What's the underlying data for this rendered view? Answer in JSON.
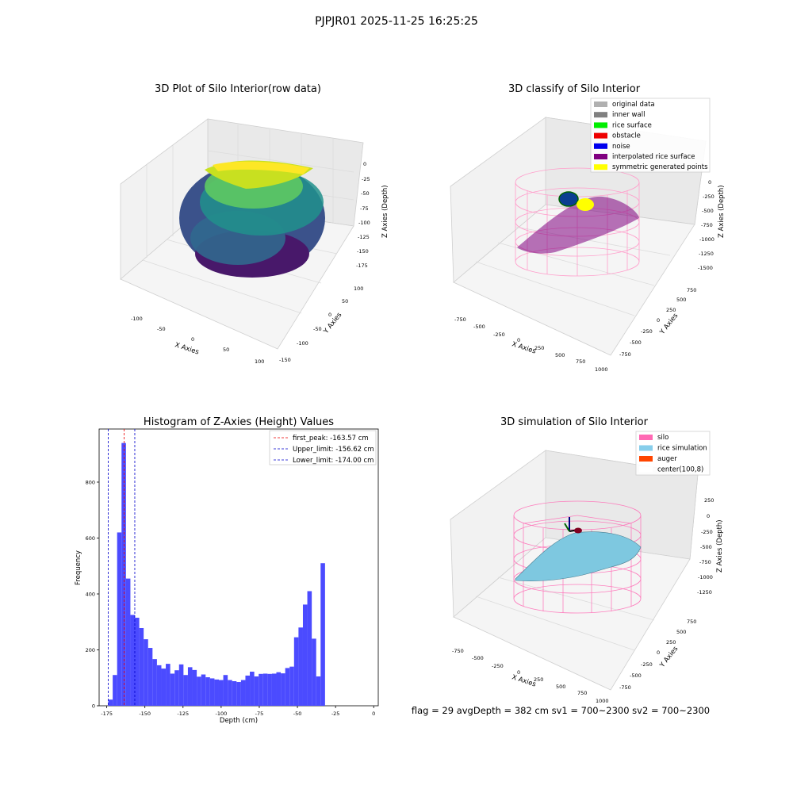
{
  "figure": {
    "suptitle": "PJPJR01 2025-11-25 16:25:25",
    "footer": "flag = 29  avgDepth = 382 cm  sv1 = 700~2300  sv2 = 700~2300"
  },
  "panels": {
    "raw": {
      "title": "3D Plot of Silo Interior(row data)",
      "xlabel": "X Axies",
      "ylabel": "Y Axies",
      "zlabel": "Z Axies (Depth)",
      "xticks": [
        "-100",
        "-50",
        "0",
        "50",
        "100"
      ],
      "yticks": [
        "100",
        "50",
        "0",
        "-50",
        "-100",
        "-150"
      ],
      "zticks": [
        "0",
        "-25",
        "-50",
        "-75",
        "-100",
        "-125",
        "-150",
        "-175"
      ]
    },
    "classify": {
      "title": "3D classify of Silo Interior",
      "xlabel": "X Axies",
      "ylabel": "Y Axies",
      "zlabel": "Z Axies (Depth)",
      "xticks": [
        "-750",
        "-500",
        "-250",
        "0",
        "250",
        "500",
        "750",
        "1000"
      ],
      "yticks": [
        "750",
        "500",
        "250",
        "0",
        "-250",
        "-500",
        "-750"
      ],
      "zticks": [
        "0",
        "-250",
        "-500",
        "-750",
        "-1000",
        "-1250",
        "-1500"
      ],
      "legend": [
        {
          "label": "original data",
          "color": "#b0b0b0"
        },
        {
          "label": "inner wall",
          "color": "#808080"
        },
        {
          "label": "rice surface",
          "color": "#00ee00"
        },
        {
          "label": "obstacle",
          "color": "#ee0000"
        },
        {
          "label": "noise",
          "color": "#0000ee"
        },
        {
          "label": "interpolated rice surface",
          "color": "#800080"
        },
        {
          "label": "symmetric generated points",
          "color": "#ffff00"
        }
      ]
    },
    "simulation": {
      "title": "3D simulation of Silo Interior",
      "xlabel": "X Axies",
      "ylabel": "Y Axies",
      "zlabel": "Z Axies (Depth)",
      "xticks": [
        "-750",
        "-500",
        "-250",
        "0",
        "250",
        "500",
        "750",
        "1000"
      ],
      "yticks": [
        "750",
        "500",
        "250",
        "0",
        "-250",
        "-500",
        "-750"
      ],
      "zticks": [
        "250",
        "0",
        "-250",
        "-500",
        "-750",
        "-1000",
        "-1250"
      ],
      "legend": [
        {
          "label": "silo",
          "color": "#ff69b4"
        },
        {
          "label": "rice simulation",
          "color": "#87ceeb"
        },
        {
          "label": "auger",
          "color": "#ff4500"
        },
        {
          "label": "center(100,8)",
          "color": "#ffffff"
        }
      ]
    }
  },
  "chart_data": {
    "type": "bar",
    "title": "Histogram of Z-Axies (Height) Values",
    "xlabel": "Depth (cm)",
    "ylabel": "Frequency",
    "xlim": [
      -180,
      3
    ],
    "ylim": [
      0,
      990
    ],
    "xticks": [
      -175,
      -150,
      -125,
      -100,
      -75,
      -50,
      -25,
      0
    ],
    "yticks": [
      0,
      200,
      400,
      600,
      800
    ],
    "bar_color": "#4b4bff",
    "bin_width": 2.9,
    "bins": [
      {
        "x": -174.0,
        "value": 22
      },
      {
        "x": -171.1,
        "value": 110
      },
      {
        "x": -168.2,
        "value": 620
      },
      {
        "x": -165.3,
        "value": 940
      },
      {
        "x": -162.4,
        "value": 455
      },
      {
        "x": -159.5,
        "value": 325
      },
      {
        "x": -156.6,
        "value": 315
      },
      {
        "x": -153.7,
        "value": 278
      },
      {
        "x": -150.8,
        "value": 238
      },
      {
        "x": -147.9,
        "value": 207
      },
      {
        "x": -145.0,
        "value": 167
      },
      {
        "x": -142.1,
        "value": 145
      },
      {
        "x": -139.2,
        "value": 133
      },
      {
        "x": -136.3,
        "value": 150
      },
      {
        "x": -133.4,
        "value": 115
      },
      {
        "x": -130.5,
        "value": 127
      },
      {
        "x": -127.6,
        "value": 148
      },
      {
        "x": -124.7,
        "value": 110
      },
      {
        "x": -121.8,
        "value": 138
      },
      {
        "x": -118.9,
        "value": 128
      },
      {
        "x": -116.0,
        "value": 104
      },
      {
        "x": -113.1,
        "value": 112
      },
      {
        "x": -110.2,
        "value": 102
      },
      {
        "x": -107.3,
        "value": 98
      },
      {
        "x": -104.4,
        "value": 94
      },
      {
        "x": -101.5,
        "value": 92
      },
      {
        "x": -98.6,
        "value": 110
      },
      {
        "x": -95.7,
        "value": 92
      },
      {
        "x": -92.8,
        "value": 88
      },
      {
        "x": -89.9,
        "value": 85
      },
      {
        "x": -87.0,
        "value": 92
      },
      {
        "x": -84.1,
        "value": 108
      },
      {
        "x": -81.2,
        "value": 122
      },
      {
        "x": -78.3,
        "value": 105
      },
      {
        "x": -75.4,
        "value": 114
      },
      {
        "x": -72.5,
        "value": 115
      },
      {
        "x": -69.6,
        "value": 114
      },
      {
        "x": -66.7,
        "value": 115
      },
      {
        "x": -63.8,
        "value": 120
      },
      {
        "x": -60.9,
        "value": 116
      },
      {
        "x": -58.0,
        "value": 135
      },
      {
        "x": -55.1,
        "value": 140
      },
      {
        "x": -52.2,
        "value": 245
      },
      {
        "x": -49.3,
        "value": 280
      },
      {
        "x": -46.4,
        "value": 362
      },
      {
        "x": -43.5,
        "value": 410
      },
      {
        "x": -40.6,
        "value": 240
      },
      {
        "x": -37.7,
        "value": 105
      },
      {
        "x": -34.8,
        "value": 510
      }
    ],
    "vlines": [
      {
        "name": "first_peak: -163.57 cm",
        "x": -163.57,
        "color": "#ee0000"
      },
      {
        "name": "Upper_limit: -156.62 cm",
        "x": -156.62,
        "color": "#0000cc"
      },
      {
        "name": "Lower_limit: -174.00 cm",
        "x": -174.0,
        "color": "#0000cc"
      }
    ],
    "legend_position": "upper right"
  }
}
